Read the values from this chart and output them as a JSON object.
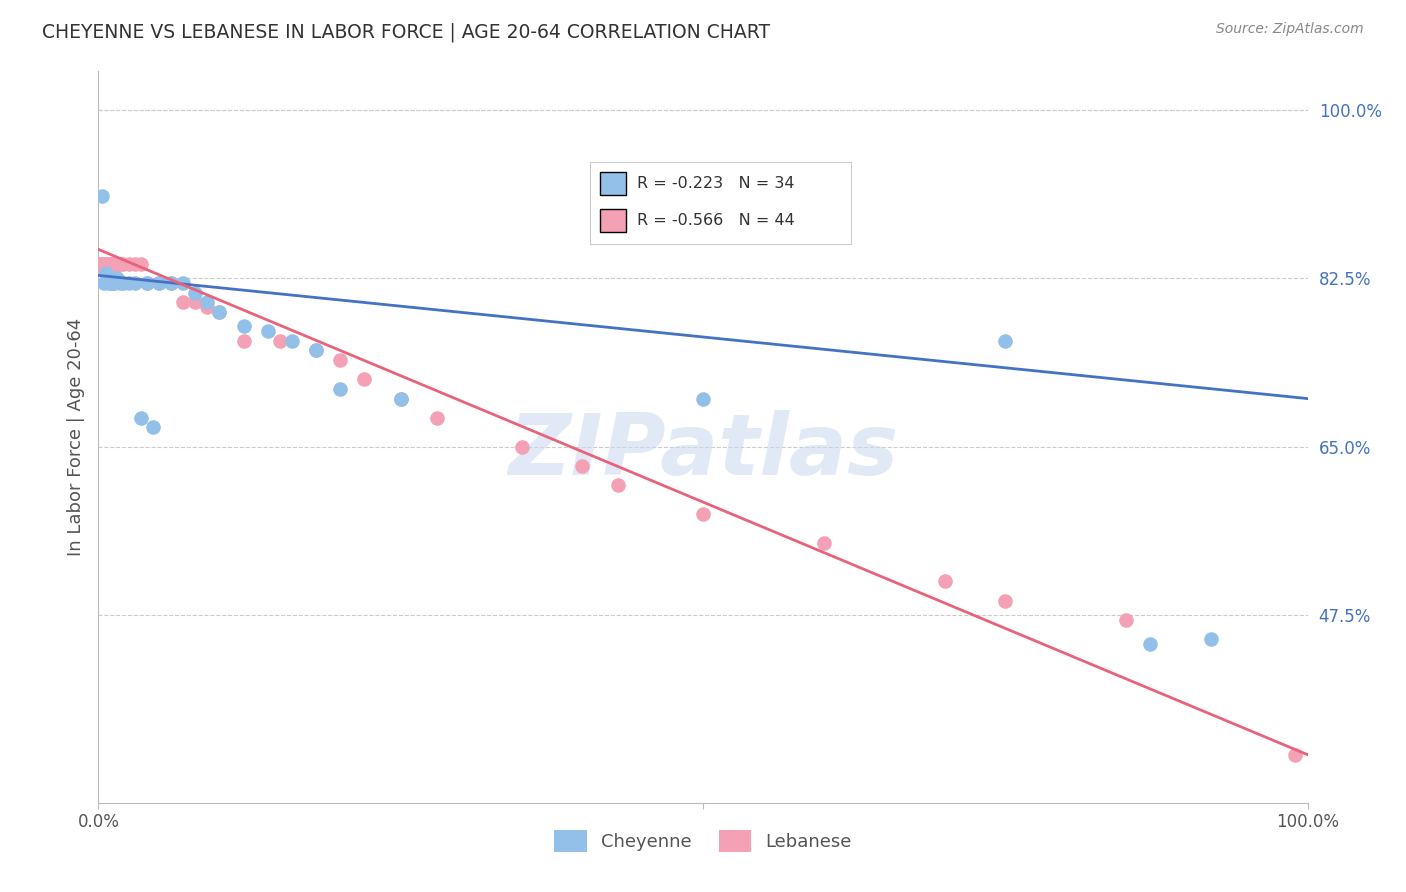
{
  "title": "CHEYENNE VS LEBANESE IN LABOR FORCE | AGE 20-64 CORRELATION CHART",
  "source": "Source: ZipAtlas.com",
  "ylabel": "In Labor Force | Age 20-64",
  "right_yticks": [
    1.0,
    0.825,
    0.65,
    0.475
  ],
  "right_ytick_labels": [
    "100.0%",
    "82.5%",
    "65.0%",
    "47.5%"
  ],
  "cheyenne_color": "#92C0E8",
  "lebanese_color": "#F4A0B5",
  "cheyenne_line_color": "#4472C4",
  "lebanese_line_color": "#E8637A",
  "R_cheyenne": -0.223,
  "N_cheyenne": 34,
  "R_lebanese": -0.566,
  "N_lebanese": 44,
  "cheyenne_x": [
    0.003,
    0.005,
    0.006,
    0.007,
    0.008,
    0.009,
    0.01,
    0.011,
    0.012,
    0.013,
    0.015,
    0.018,
    0.02,
    0.025,
    0.03,
    0.04,
    0.05,
    0.06,
    0.07,
    0.08,
    0.09,
    0.1,
    0.12,
    0.14,
    0.16,
    0.18,
    0.2,
    0.25,
    0.5,
    0.75,
    0.87,
    0.92,
    0.035,
    0.045
  ],
  "cheyenne_y": [
    0.91,
    0.82,
    0.83,
    0.825,
    0.825,
    0.82,
    0.82,
    0.82,
    0.82,
    0.82,
    0.825,
    0.82,
    0.82,
    0.82,
    0.82,
    0.82,
    0.82,
    0.82,
    0.82,
    0.81,
    0.8,
    0.79,
    0.775,
    0.77,
    0.76,
    0.75,
    0.71,
    0.7,
    0.7,
    0.76,
    0.445,
    0.45,
    0.68,
    0.67
  ],
  "lebanese_x": [
    0.001,
    0.002,
    0.003,
    0.004,
    0.005,
    0.006,
    0.007,
    0.008,
    0.009,
    0.01,
    0.011,
    0.012,
    0.013,
    0.014,
    0.015,
    0.016,
    0.018,
    0.02,
    0.025,
    0.03,
    0.035,
    0.04,
    0.05,
    0.06,
    0.07,
    0.08,
    0.09,
    0.1,
    0.12,
    0.15,
    0.18,
    0.2,
    0.22,
    0.25,
    0.28,
    0.35,
    0.4,
    0.43,
    0.5,
    0.6,
    0.7,
    0.75,
    0.85,
    0.99
  ],
  "lebanese_y": [
    0.84,
    0.84,
    0.835,
    0.84,
    0.84,
    0.84,
    0.84,
    0.84,
    0.84,
    0.84,
    0.84,
    0.84,
    0.84,
    0.84,
    0.84,
    0.84,
    0.84,
    0.84,
    0.84,
    0.84,
    0.84,
    0.82,
    0.82,
    0.82,
    0.8,
    0.8,
    0.795,
    0.79,
    0.76,
    0.76,
    0.75,
    0.74,
    0.72,
    0.7,
    0.68,
    0.65,
    0.63,
    0.61,
    0.58,
    0.55,
    0.51,
    0.49,
    0.47,
    0.33
  ],
  "cheyenne_line_x": [
    0.0,
    1.0
  ],
  "cheyenne_line_y": [
    0.828,
    0.7
  ],
  "lebanese_line_x": [
    0.0,
    1.0
  ],
  "lebanese_line_y": [
    0.855,
    0.33
  ],
  "xmin": 0.0,
  "xmax": 1.0,
  "ymin": 0.28,
  "ymax": 1.04,
  "watermark": "ZIPatlas",
  "background_color": "#FFFFFF",
  "gridcolor": "#CCCCCC"
}
